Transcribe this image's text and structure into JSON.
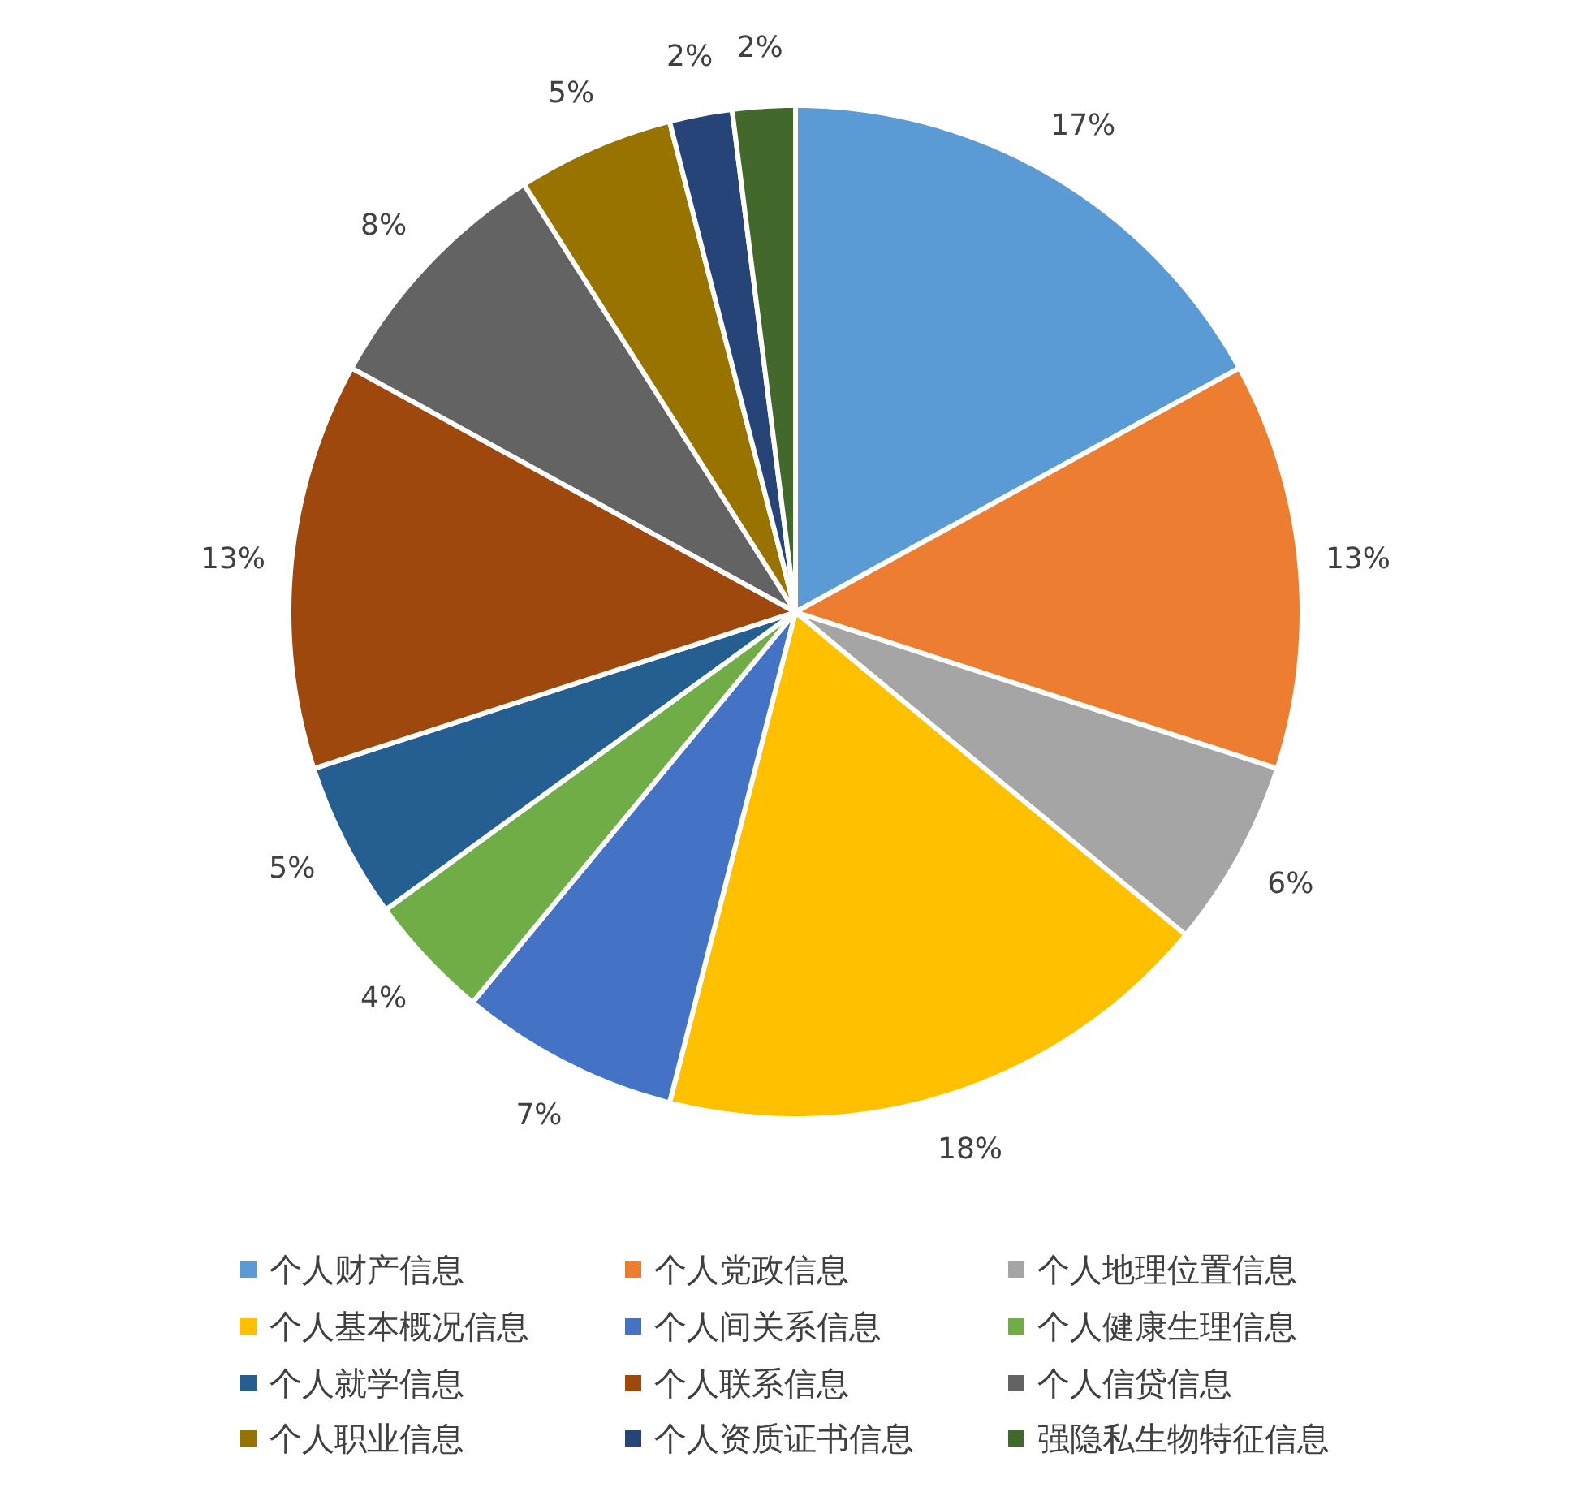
{
  "chart_data": {
    "type": "pie",
    "categories": [
      "个人财产信息",
      "个人党政信息",
      "个人地理位置信息",
      "个人基本概况信息",
      "个人间关系信息",
      "个人健康生理信息",
      "个人就学信息",
      "个人联系信息",
      "个人信贷信息",
      "个人职业信息",
      "个人资质证书信息",
      "强隐私生物特征信息"
    ],
    "values": [
      17,
      13,
      6,
      18,
      7,
      4,
      5,
      13,
      8,
      5,
      2,
      2
    ],
    "colors": [
      "#5b9bd5",
      "#ed7d31",
      "#a5a5a5",
      "#ffc000",
      "#4472c4",
      "#70ad47",
      "#255e91",
      "#9e480e",
      "#636363",
      "#997300",
      "#264478",
      "#43682b"
    ],
    "value_labels": [
      "17%",
      "13%",
      "6%",
      "18%",
      "7%",
      "4%",
      "5%",
      "13%",
      "8%",
      "5%",
      "2%",
      "2%"
    ],
    "legend": "bottom"
  }
}
